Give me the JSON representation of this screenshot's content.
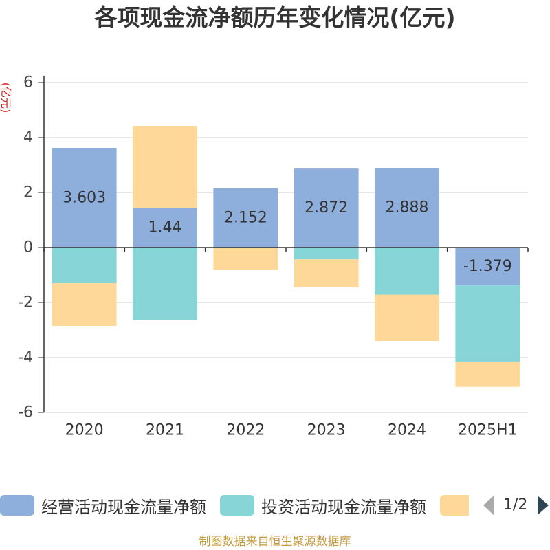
{
  "colors": {
    "title": "#333333",
    "unit_label": "#d42020",
    "footer_text": "#c49a3c",
    "gridline": "#cccccc",
    "axis": "#333333"
  },
  "legend": {
    "page": "1/2"
  },
  "footer": {
    "text": "制图数据来自恒生聚源数据库"
  },
  "chart_data": {
    "type": "bar",
    "stacked": true,
    "title": "各项现金流净额历年变化情况(亿元)",
    "ylabel": "(亿元)",
    "xlabel": "",
    "categories": [
      "2020",
      "2021",
      "2022",
      "2023",
      "2024",
      "2025H1"
    ],
    "ylim": [
      -6,
      6
    ],
    "yticks": [
      -6,
      -4,
      -2,
      0,
      2,
      4,
      6
    ],
    "grid": true,
    "legend_position": "bottom",
    "series": [
      {
        "name": "经营活动现金流量净额",
        "color": "#8eaedb",
        "show_labels": true,
        "values": [
          3.603,
          1.44,
          2.152,
          2.872,
          2.888,
          -1.379
        ]
      },
      {
        "name": "投资活动现金流量净额",
        "color": "#87d5d7",
        "values": [
          -1.3,
          -2.63,
          0,
          -0.43,
          -1.72,
          -2.77
        ]
      },
      {
        "color": "#fdd899",
        "values": [
          -1.55,
          2.96,
          -0.8,
          -1.02,
          -1.68,
          -0.92
        ]
      }
    ]
  }
}
